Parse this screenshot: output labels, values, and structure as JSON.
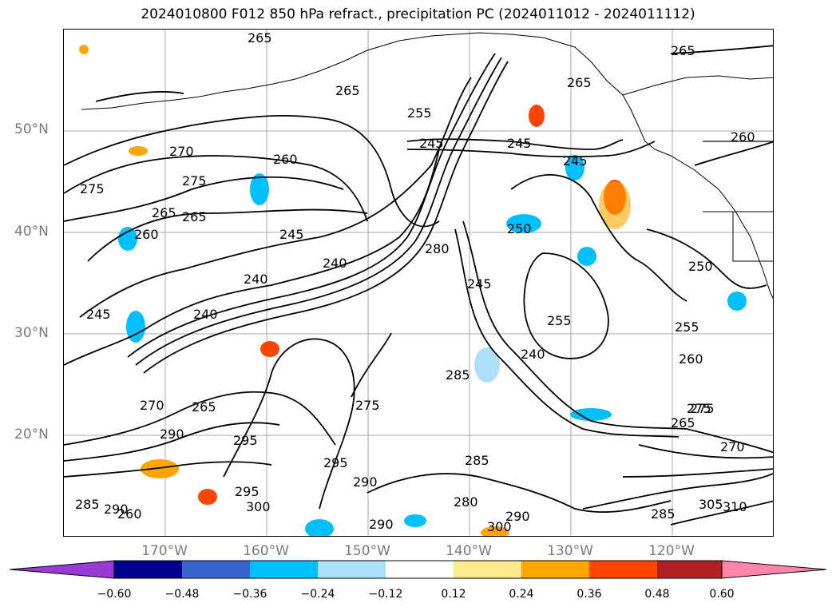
{
  "title": "2024010800 F012 850 hPa refract., precipitation PC (2024011012 - 2024011112)",
  "map": {
    "lat_labels": [
      "50°N",
      "40°N",
      "30°N",
      "20°N"
    ],
    "lon_labels": [
      "170°W",
      "160°W",
      "150°W",
      "140°W",
      "130°W",
      "120°W"
    ],
    "contour_labels": [
      "265",
      "265",
      "265",
      "265",
      "260",
      "255",
      "245",
      "245",
      "270",
      "275",
      "275",
      "260",
      "265",
      "265",
      "260",
      "245",
      "240",
      "240",
      "250",
      "280",
      "245",
      "255",
      "255",
      "240",
      "250",
      "245",
      "240",
      "245",
      "285",
      "275",
      "270",
      "265",
      "295",
      "290",
      "275",
      "295",
      "290",
      "285",
      "280",
      "290",
      "295",
      "290",
      "285",
      "300",
      "305",
      "310",
      "265",
      "275",
      "270",
      "260",
      "260",
      "285",
      "290",
      "300"
    ]
  },
  "colorbar": {
    "colors": [
      "#9a3ad6",
      "#00008f",
      "#3863d0",
      "#00bfff",
      "#aee0fb",
      "#ffffff",
      "#fde98e",
      "#ffa500",
      "#ff4500",
      "#b22222",
      "#ff85a8"
    ],
    "tick_labels": [
      "−0.60",
      "−0.48",
      "−0.36",
      "−0.24",
      "−0.12",
      "0.12",
      "0.24",
      "0.36",
      "0.48",
      "0.60"
    ]
  }
}
